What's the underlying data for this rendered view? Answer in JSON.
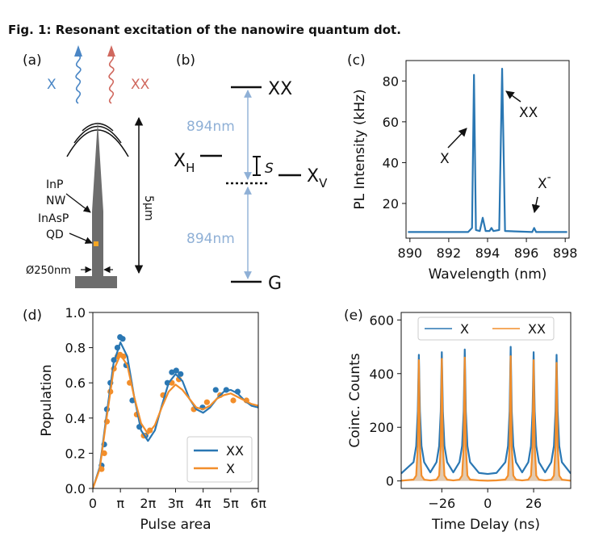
{
  "caption": "Fig. 1: Resonant excitation of the nanowire quantum dot.",
  "panel_a": {
    "label": "(a)",
    "emission": [
      "X",
      "XX"
    ],
    "labels": [
      "InP",
      "NW",
      "InAsP",
      "QD"
    ],
    "diameter": "Ø250nm",
    "height": "5μm"
  },
  "panel_b": {
    "label": "(b)",
    "levels": [
      {
        "text": "XX"
      },
      {
        "text": "X",
        "sub": "H"
      },
      {
        "text": "X",
        "sub": "V"
      },
      {
        "text": "G"
      }
    ],
    "splitting": "S",
    "transitions": [
      "894nm",
      "894nm"
    ]
  },
  "chart_data": [
    {
      "type": "line",
      "panel": "(c)",
      "xlabel": "Wavelength (nm)",
      "ylabel": "PL Intensity (kHz)",
      "xlim": [
        889.8,
        898.2
      ],
      "ylim": [
        3,
        90
      ],
      "xticks": [
        890,
        892,
        894,
        896,
        898
      ],
      "yticks": [
        20,
        40,
        60,
        80
      ],
      "series": [
        {
          "color": "#2a77b3",
          "x": [
            889.9,
            893.0,
            893.2,
            893.3,
            893.4,
            893.6,
            893.75,
            893.9,
            894.1,
            894.2,
            894.3,
            894.6,
            894.75,
            894.9,
            896.3,
            896.4,
            896.5,
            898.1
          ],
          "values": [
            6,
            6,
            8,
            83,
            7,
            6.5,
            13,
            6.5,
            6.5,
            8,
            6.5,
            7,
            86,
            6.5,
            6,
            8,
            6,
            6
          ]
        }
      ],
      "annotations": [
        {
          "text": "X"
        },
        {
          "text": "XX"
        },
        {
          "text": "X",
          "sup": "-"
        }
      ]
    },
    {
      "type": "line",
      "panel": "(d)",
      "xlabel": "Pulse area",
      "ylabel": "Population",
      "xlim": [
        0,
        18.85
      ],
      "ylim": [
        0,
        1
      ],
      "xticks": [
        0,
        {
          "value": 3.1416,
          "label": "π"
        },
        {
          "value": 6.2832,
          "label": "2π"
        },
        {
          "value": 9.4248,
          "label": "3π"
        },
        {
          "value": 12.5664,
          "label": "4π"
        },
        {
          "value": 15.708,
          "label": "5π"
        },
        {
          "value": 18.8496,
          "label": "6π"
        }
      ],
      "yticks": [
        {
          "value": 0,
          "label": "0.0"
        },
        0.2,
        0.4,
        0.6,
        0.8,
        {
          "value": 1,
          "label": "1.0"
        }
      ],
      "legend": "lower right",
      "series": [
        {
          "color": "#2a77b3",
          "marker": "dot",
          "x": [
            1.0,
            1.3,
            1.6,
            2.0,
            2.4,
            2.8,
            3.1,
            3.4,
            3.8,
            4.5,
            5.3,
            6.0,
            8.5,
            9.0,
            9.5,
            10.0,
            12.5,
            14.0,
            15.2,
            16.5
          ],
          "values": [
            0.13,
            0.25,
            0.45,
            0.6,
            0.73,
            0.8,
            0.86,
            0.85,
            0.7,
            0.5,
            0.35,
            0.3,
            0.6,
            0.66,
            0.67,
            0.65,
            0.46,
            0.56,
            0.56,
            0.55
          ]
        },
        {
          "color": "#f28e2b",
          "marker": "dot",
          "x": [
            1.0,
            1.3,
            1.6,
            2.0,
            2.4,
            2.8,
            3.1,
            3.5,
            4.2,
            5.0,
            5.8,
            6.5,
            8.0,
            9.0,
            9.8,
            11.5,
            13.0,
            14.5,
            16.0,
            17.5
          ],
          "values": [
            0.11,
            0.2,
            0.38,
            0.55,
            0.68,
            0.75,
            0.76,
            0.75,
            0.6,
            0.42,
            0.3,
            0.33,
            0.53,
            0.6,
            0.62,
            0.45,
            0.49,
            0.53,
            0.5,
            0.5
          ]
        },
        {
          "name": "XX",
          "color": "#2a77b3",
          "x": [
            0,
            0.785,
            1.571,
            2.356,
            3.142,
            3.927,
            4.712,
            5.498,
            6.283,
            7.069,
            7.854,
            8.639,
            9.425,
            10.21,
            10.996,
            11.781,
            12.566,
            13.352,
            14.137,
            14.923,
            15.708,
            16.493,
            17.279,
            18.064,
            18.85
          ],
          "values": [
            0,
            0.12,
            0.42,
            0.71,
            0.83,
            0.75,
            0.52,
            0.33,
            0.27,
            0.33,
            0.47,
            0.6,
            0.65,
            0.61,
            0.51,
            0.45,
            0.43,
            0.46,
            0.51,
            0.55,
            0.56,
            0.54,
            0.5,
            0.47,
            0.46
          ]
        },
        {
          "name": "X",
          "color": "#f28e2b",
          "x": [
            0,
            0.785,
            1.571,
            2.356,
            3.142,
            3.927,
            4.712,
            5.498,
            6.283,
            7.069,
            7.854,
            8.639,
            9.425,
            10.21,
            10.996,
            11.781,
            12.566,
            13.352,
            14.137,
            14.923,
            15.708,
            16.493,
            17.279,
            18.064,
            18.85
          ],
          "values": [
            0,
            0.11,
            0.4,
            0.67,
            0.76,
            0.7,
            0.52,
            0.37,
            0.31,
            0.36,
            0.46,
            0.55,
            0.59,
            0.56,
            0.51,
            0.46,
            0.45,
            0.47,
            0.51,
            0.53,
            0.54,
            0.52,
            0.5,
            0.48,
            0.47
          ]
        }
      ]
    },
    {
      "type": "line",
      "panel": "(e)",
      "xlabel": "Time Delay (ns)",
      "ylabel": "Coinc. Counts",
      "xlim": [
        -49,
        47
      ],
      "ylim": [
        -28,
        628
      ],
      "xticks": [
        {
          "value": -26,
          "label": "−26"
        },
        0,
        26
      ],
      "yticks": [
        0,
        200,
        400,
        600
      ],
      "legend": "upper center",
      "series": [
        {
          "name": "X",
          "color": "#2a77b3",
          "x": [
            -49,
            -42,
            -40.5,
            -39.6,
            -39,
            -38.4,
            -37.5,
            -36,
            -32.5,
            -29,
            -27.5,
            -26.6,
            -26,
            -25.4,
            -24.5,
            -23,
            -19.5,
            -16,
            -14.5,
            -13.6,
            -13,
            -12.4,
            -11.5,
            -10,
            -5,
            0,
            5,
            10,
            11.5,
            12.4,
            13,
            13.6,
            14.5,
            16,
            19.5,
            23,
            24.5,
            25.4,
            26,
            26.6,
            27.5,
            29,
            32.5,
            36,
            37.5,
            38.4,
            39,
            39.6,
            40.5,
            42,
            47
          ],
          "values": [
            28,
            70,
            130,
            260,
            470,
            260,
            130,
            70,
            32,
            70,
            130,
            260,
            480,
            260,
            130,
            70,
            32,
            70,
            130,
            260,
            490,
            260,
            130,
            70,
            30,
            26,
            30,
            70,
            130,
            260,
            500,
            260,
            130,
            70,
            32,
            70,
            130,
            260,
            480,
            260,
            130,
            70,
            32,
            70,
            130,
            260,
            470,
            260,
            130,
            70,
            28
          ]
        },
        {
          "name": "XX",
          "color": "#f28e2b",
          "fill": "#d8b896",
          "x": [
            -49,
            -42,
            -40.5,
            -39.6,
            -39,
            -38.4,
            -37.5,
            -36,
            -32.5,
            -29,
            -27.5,
            -26.6,
            -26,
            -25.4,
            -24.5,
            -23,
            -19.5,
            -16,
            -14.5,
            -13.6,
            -13,
            -12.4,
            -11.5,
            -10,
            -5,
            0,
            5,
            10,
            11.5,
            12.4,
            13,
            13.6,
            14.5,
            16,
            19.5,
            23,
            24.5,
            25.4,
            26,
            26.6,
            27.5,
            29,
            32.5,
            36,
            37.5,
            38.4,
            39,
            39.6,
            40.5,
            42,
            47
          ],
          "values": [
            1,
            5,
            20,
            130,
            450,
            130,
            20,
            5,
            2,
            5,
            20,
            130,
            455,
            130,
            20,
            5,
            2,
            5,
            20,
            130,
            460,
            130,
            20,
            5,
            2,
            1,
            2,
            5,
            20,
            130,
            465,
            130,
            20,
            5,
            2,
            5,
            20,
            130,
            450,
            130,
            20,
            5,
            2,
            5,
            20,
            130,
            440,
            130,
            20,
            5,
            1
          ]
        }
      ]
    }
  ]
}
